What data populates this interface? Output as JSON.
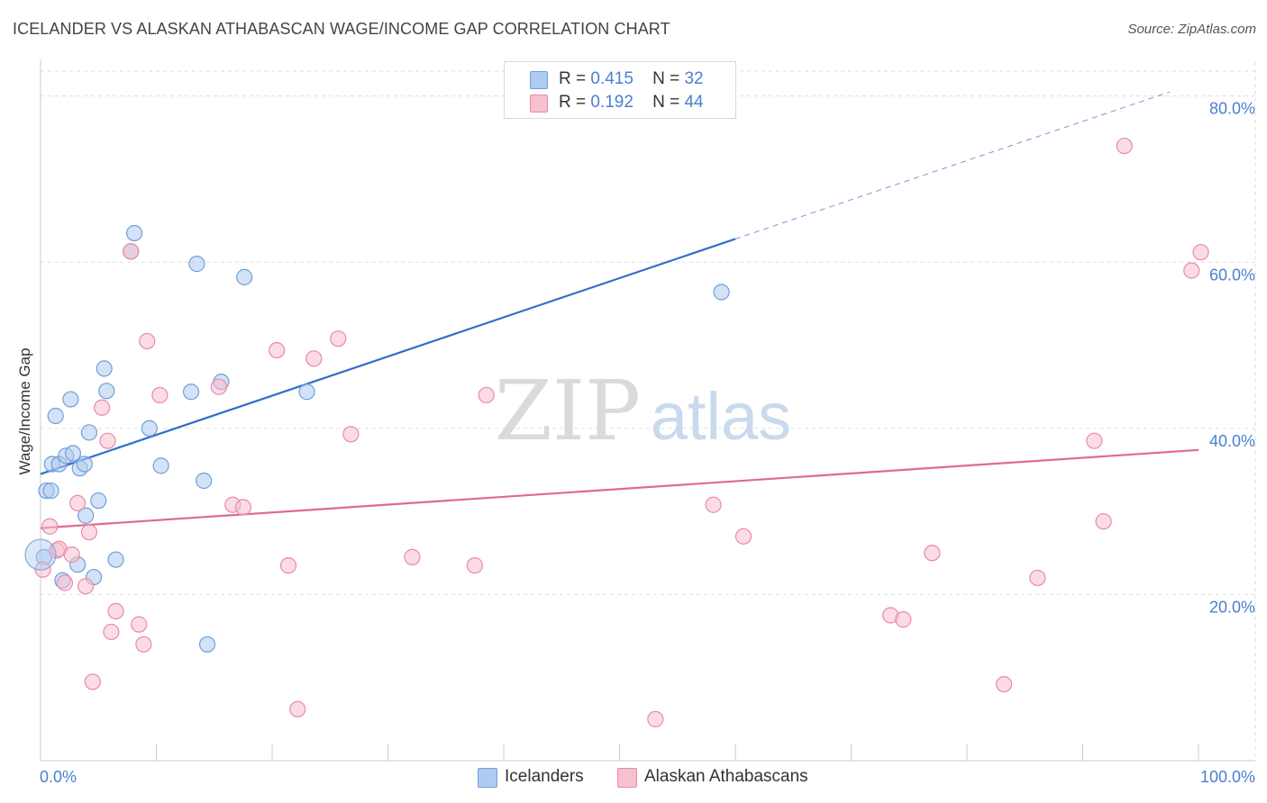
{
  "title": "ICELANDER VS ALASKAN ATHABASCAN WAGE/INCOME GAP CORRELATION CHART",
  "source": "Source: ZipAtlas.com",
  "watermark": {
    "zip": "ZIP",
    "atlas": "atlas"
  },
  "legend": {
    "series1": {
      "r_label": "R =",
      "r_value": "0.415",
      "n_label": "N =",
      "n_value": "32"
    },
    "series2": {
      "r_label": "R =",
      "r_value": "0.192",
      "n_label": "N =",
      "n_value": "44"
    }
  },
  "bottom_legend": {
    "series1": "Icelanders",
    "series2": "Alaskan Athabascans"
  },
  "colors": {
    "blue_fill": "#aecbf0",
    "blue_stroke": "#6f9fd8",
    "blue_line": "#3070cc",
    "pink_fill": "#f7c0cf",
    "pink_stroke": "#e88aa6",
    "pink_line": "#e06a93",
    "axis_text": "#4a7fd0",
    "grid": "#dddddd"
  },
  "chart_data": {
    "type": "scatter",
    "title": "ICELANDER VS ALASKAN ATHABASCAN WAGE/INCOME GAP CORRELATION CHART",
    "xlabel": "",
    "ylabel": "Wage/Income Gap",
    "xlim": [
      0,
      100
    ],
    "ylim": [
      0,
      83
    ],
    "x_tick_labels": [
      "0.0%",
      "100.0%"
    ],
    "y_ticks": [
      20,
      40,
      60,
      80
    ],
    "y_tick_labels": [
      "20.0%",
      "40.0%",
      "60.0%",
      "80.0%"
    ],
    "grid": true,
    "series": [
      {
        "name": "Icelanders",
        "R": 0.415,
        "N": 32,
        "points": [
          [
            0.3,
            24.5
          ],
          [
            0.5,
            32.5
          ],
          [
            0.9,
            32.5
          ],
          [
            1.0,
            35.7
          ],
          [
            1.3,
            41.5
          ],
          [
            1.6,
            35.7
          ],
          [
            1.9,
            21.7
          ],
          [
            2.2,
            36.7
          ],
          [
            2.6,
            43.5
          ],
          [
            2.8,
            37.0
          ],
          [
            3.2,
            23.6
          ],
          [
            3.4,
            35.2
          ],
          [
            3.8,
            35.7
          ],
          [
            3.9,
            29.5
          ],
          [
            4.2,
            39.5
          ],
          [
            4.6,
            22.1
          ],
          [
            5.0,
            31.3
          ],
          [
            5.5,
            47.2
          ],
          [
            5.7,
            44.5
          ],
          [
            6.5,
            24.2
          ],
          [
            7.8,
            61.3
          ],
          [
            8.1,
            63.5
          ],
          [
            9.4,
            40.0
          ],
          [
            10.4,
            35.5
          ],
          [
            13.0,
            44.4
          ],
          [
            13.5,
            59.8
          ],
          [
            14.1,
            33.7
          ],
          [
            14.4,
            14.0
          ],
          [
            15.6,
            45.6
          ],
          [
            17.6,
            58.2
          ],
          [
            23.0,
            44.4
          ],
          [
            58.8,
            56.4
          ]
        ],
        "trend": {
          "x0": 0.0,
          "y0": 34.5,
          "x1": 60.0,
          "y1": 62.8,
          "dashed_to_x": 97.5
        }
      },
      {
        "name": "Alaskan Athabascans",
        "R": 0.192,
        "N": 44,
        "points": [
          [
            0.2,
            23.0
          ],
          [
            0.8,
            28.2
          ],
          [
            1.4,
            25.3
          ],
          [
            1.6,
            25.5
          ],
          [
            2.1,
            21.4
          ],
          [
            2.7,
            24.8
          ],
          [
            3.2,
            31.0
          ],
          [
            3.9,
            21.0
          ],
          [
            4.2,
            27.5
          ],
          [
            4.5,
            9.5
          ],
          [
            5.3,
            42.5
          ],
          [
            5.8,
            38.5
          ],
          [
            6.1,
            15.5
          ],
          [
            6.5,
            18.0
          ],
          [
            7.8,
            61.3
          ],
          [
            8.5,
            16.4
          ],
          [
            8.9,
            14.0
          ],
          [
            9.2,
            50.5
          ],
          [
            10.3,
            44.0
          ],
          [
            15.4,
            45.0
          ],
          [
            16.6,
            30.8
          ],
          [
            17.5,
            30.5
          ],
          [
            20.4,
            49.4
          ],
          [
            21.4,
            23.5
          ],
          [
            22.2,
            6.2
          ],
          [
            23.6,
            48.4
          ],
          [
            25.7,
            50.8
          ],
          [
            26.8,
            39.3
          ],
          [
            32.1,
            24.5
          ],
          [
            37.5,
            23.5
          ],
          [
            38.5,
            44.0
          ],
          [
            53.1,
            5.0
          ],
          [
            58.1,
            30.8
          ],
          [
            60.7,
            27.0
          ],
          [
            73.4,
            17.5
          ],
          [
            74.5,
            17.0
          ],
          [
            77.0,
            25.0
          ],
          [
            83.2,
            9.2
          ],
          [
            86.1,
            22.0
          ],
          [
            91.0,
            38.5
          ],
          [
            91.8,
            28.8
          ],
          [
            93.6,
            74.0
          ],
          [
            99.4,
            59.0
          ],
          [
            100.2,
            61.2
          ]
        ],
        "trend": {
          "x0": 0.0,
          "y0": 28.0,
          "x1": 100.0,
          "y1": 37.4
        }
      }
    ]
  }
}
